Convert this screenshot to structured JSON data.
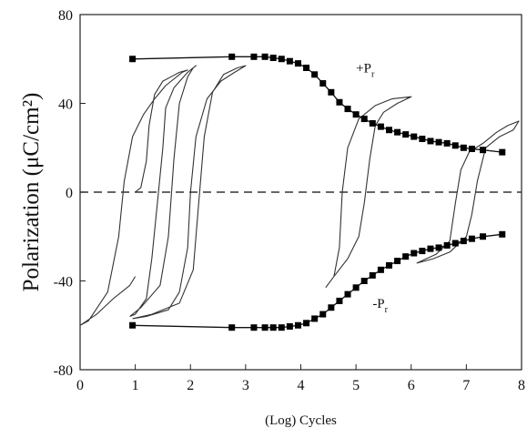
{
  "chart_data": {
    "type": "line",
    "title": "",
    "xlabel": "(Log) Cycles",
    "ylabel": "Polarization (μC/cm²)",
    "xlim": [
      0,
      8
    ],
    "ylim": [
      -80,
      80
    ],
    "x_ticks": [
      "0",
      "1",
      "2",
      "3",
      "4",
      "5",
      "6",
      "7",
      "8"
    ],
    "y_ticks": [
      "80",
      "40",
      "0",
      "-40",
      "-80"
    ],
    "grid": false,
    "legend": "none",
    "reference_line": {
      "y": 0,
      "style": "dashed"
    },
    "annotations": [
      {
        "text": "+P",
        "sub": "r",
        "x": 5.0,
        "y": 54
      },
      {
        "text": "-P",
        "sub": "r",
        "x": 5.3,
        "y": -52
      }
    ],
    "series": [
      {
        "name": "+Pᵣ",
        "marker": "square",
        "x": [
          0.95,
          2.75,
          3.15,
          3.35,
          3.5,
          3.65,
          3.8,
          3.95,
          4.1,
          4.25,
          4.4,
          4.55,
          4.7,
          4.85,
          5.0,
          5.15,
          5.3,
          5.45,
          5.6,
          5.75,
          5.9,
          6.05,
          6.2,
          6.35,
          6.5,
          6.65,
          6.8,
          6.95,
          7.1,
          7.3,
          7.65
        ],
        "y": [
          60,
          61,
          61,
          61,
          60.5,
          60,
          59,
          58,
          56,
          53,
          49,
          45,
          40.5,
          37.5,
          35,
          33,
          31,
          29.5,
          28,
          27,
          26,
          25,
          24,
          23,
          22.5,
          22,
          21,
          20,
          19.5,
          19,
          18
        ]
      },
      {
        "name": "-Pᵣ",
        "marker": "square",
        "x": [
          0.95,
          2.75,
          3.15,
          3.35,
          3.5,
          3.65,
          3.8,
          3.95,
          4.1,
          4.25,
          4.4,
          4.55,
          4.7,
          4.85,
          5.0,
          5.15,
          5.3,
          5.45,
          5.6,
          5.75,
          5.9,
          6.05,
          6.2,
          6.35,
          6.5,
          6.65,
          6.8,
          6.95,
          7.1,
          7.3,
          7.65
        ],
        "y": [
          -60,
          -61,
          -61,
          -61,
          -61,
          -61,
          -60.5,
          -60,
          -59,
          -57,
          -55,
          -52,
          -49,
          -46,
          -43,
          -40,
          -37.5,
          -35,
          -33,
          -31,
          -29,
          -27.5,
          -26.5,
          -25.5,
          -25,
          -24,
          -23,
          -22,
          -21,
          -20,
          -19
        ]
      }
    ],
    "loops": [
      {
        "path": [
          [
            1.0,
            0
          ],
          [
            1.1,
            2
          ],
          [
            1.2,
            14
          ],
          [
            1.25,
            30
          ],
          [
            1.35,
            44
          ],
          [
            1.5,
            50
          ],
          [
            1.65,
            52
          ],
          [
            1.8,
            54
          ],
          [
            1.95,
            55
          ],
          [
            1.85,
            54
          ],
          [
            1.55,
            48
          ],
          [
            1.35,
            42
          ],
          [
            1.15,
            35
          ],
          [
            0.95,
            25
          ],
          [
            0.8,
            5
          ],
          [
            0.7,
            -20
          ],
          [
            0.5,
            -45
          ],
          [
            0.15,
            -58
          ],
          [
            0,
            -60
          ],
          [
            0.3,
            -55
          ],
          [
            0.6,
            -48
          ],
          [
            0.9,
            -42
          ],
          [
            1.0,
            -38
          ]
        ]
      },
      {
        "path": [
          [
            0.9,
            -56
          ],
          [
            1.1,
            -52
          ],
          [
            1.45,
            -42
          ],
          [
            1.6,
            -20
          ],
          [
            1.7,
            15
          ],
          [
            1.8,
            40
          ],
          [
            1.95,
            52
          ],
          [
            2.05,
            56
          ],
          [
            2.1,
            57
          ],
          [
            1.95,
            54
          ],
          [
            1.7,
            47
          ],
          [
            1.55,
            38
          ],
          [
            1.5,
            20
          ],
          [
            1.4,
            -5
          ],
          [
            1.3,
            -30
          ],
          [
            1.2,
            -48
          ],
          [
            1.0,
            -55
          ],
          [
            0.9,
            -56
          ]
        ]
      },
      {
        "path": [
          [
            0.95,
            -57
          ],
          [
            1.3,
            -55
          ],
          [
            1.8,
            -50
          ],
          [
            2.05,
            -35
          ],
          [
            2.15,
            -5
          ],
          [
            2.25,
            25
          ],
          [
            2.4,
            45
          ],
          [
            2.6,
            53
          ],
          [
            2.85,
            56
          ],
          [
            3.0,
            57
          ],
          [
            2.8,
            54
          ],
          [
            2.55,
            50
          ],
          [
            2.3,
            42
          ],
          [
            2.1,
            25
          ],
          [
            2.0,
            0
          ],
          [
            1.95,
            -25
          ],
          [
            1.8,
            -45
          ],
          [
            1.6,
            -53
          ],
          [
            1.2,
            -56
          ],
          [
            0.95,
            -57
          ]
        ]
      },
      {
        "path": [
          [
            4.45,
            -43
          ],
          [
            4.6,
            -38
          ],
          [
            4.7,
            -25
          ],
          [
            4.75,
            0
          ],
          [
            4.85,
            20
          ],
          [
            5.05,
            33
          ],
          [
            5.35,
            39
          ],
          [
            5.65,
            42
          ],
          [
            6.0,
            43
          ],
          [
            5.75,
            40
          ],
          [
            5.5,
            36
          ],
          [
            5.35,
            30
          ],
          [
            5.25,
            15
          ],
          [
            5.15,
            -5
          ],
          [
            5.05,
            -20
          ],
          [
            4.85,
            -30
          ],
          [
            4.6,
            -38
          ],
          [
            4.45,
            -43
          ]
        ]
      },
      {
        "path": [
          [
            6.1,
            -32
          ],
          [
            6.45,
            -28
          ],
          [
            6.7,
            -22
          ],
          [
            6.8,
            -5
          ],
          [
            6.9,
            10
          ],
          [
            7.05,
            18
          ],
          [
            7.3,
            22
          ],
          [
            7.55,
            27
          ],
          [
            7.75,
            30
          ],
          [
            7.95,
            32
          ],
          [
            7.85,
            28
          ],
          [
            7.6,
            25
          ],
          [
            7.35,
            20
          ],
          [
            7.2,
            5
          ],
          [
            7.1,
            -10
          ],
          [
            7.0,
            -20
          ],
          [
            6.7,
            -27
          ],
          [
            6.4,
            -30
          ],
          [
            6.1,
            -32
          ]
        ]
      }
    ]
  }
}
